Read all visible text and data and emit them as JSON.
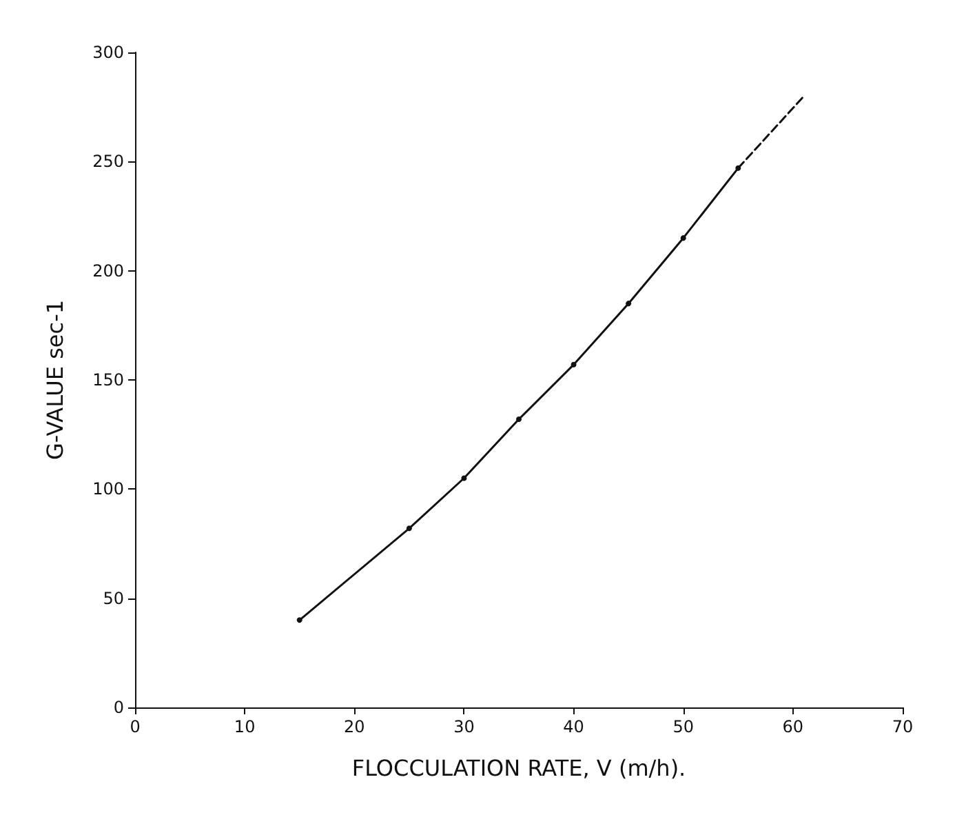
{
  "chart_data": {
    "type": "line",
    "xlabel": "FLOCCULATION RATE, V (m/h).",
    "ylabel": "G-VALUE sec-1",
    "series": [
      {
        "color": "#111111",
        "marker": "circle",
        "line_style": "solid",
        "x": [
          15,
          25,
          30,
          35,
          40,
          45,
          50,
          55
        ],
        "values": [
          40,
          82,
          105,
          132,
          157,
          185,
          215,
          247
        ]
      },
      {
        "color": "#111111",
        "marker": "none",
        "line_style": "dashed",
        "x": [
          55,
          61
        ],
        "values": [
          247,
          280
        ]
      }
    ],
    "xlim": [
      0,
      70
    ],
    "xticks": [
      0,
      10,
      20,
      30,
      40,
      50,
      60,
      70
    ],
    "ylim": [
      0,
      300
    ],
    "yticks": [
      0,
      50,
      100,
      150,
      200,
      250,
      300
    ],
    "grid": false
  }
}
